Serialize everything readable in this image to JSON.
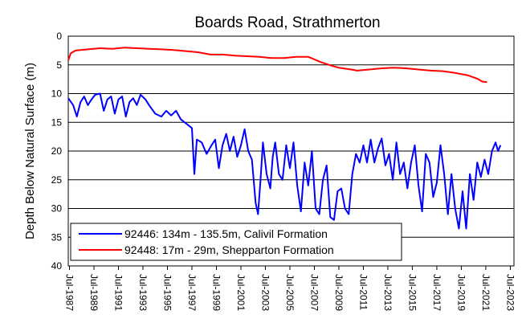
{
  "chart_data": {
    "type": "line",
    "title": "Boards Road, Strathmerton",
    "y_label": "Depth Below Natural Surface (m)",
    "xlim": [
      1987.4,
      2023.8
    ],
    "ylim": [
      40,
      0
    ],
    "yticks": [
      0,
      5,
      10,
      15,
      20,
      25,
      30,
      35,
      40
    ],
    "xticks": [
      {
        "value": 1987.5,
        "label": "Jul-1987"
      },
      {
        "value": 1989.5,
        "label": "Jul-1989"
      },
      {
        "value": 1991.5,
        "label": "Jul-1991"
      },
      {
        "value": 1993.5,
        "label": "Jul-1993"
      },
      {
        "value": 1995.5,
        "label": "Jul-1995"
      },
      {
        "value": 1997.5,
        "label": "Jul-1997"
      },
      {
        "value": 1999.5,
        "label": "Jul-1999"
      },
      {
        "value": 2001.5,
        "label": "Jul-2001"
      },
      {
        "value": 2003.5,
        "label": "Jul-2003"
      },
      {
        "value": 2005.5,
        "label": "Jul-2005"
      },
      {
        "value": 2007.5,
        "label": "Jul-2007"
      },
      {
        "value": 2009.5,
        "label": "Jul-2009"
      },
      {
        "value": 2011.5,
        "label": "Jul-2011"
      },
      {
        "value": 2013.5,
        "label": "Jul-2013"
      },
      {
        "value": 2015.5,
        "label": "Jul-2015"
      },
      {
        "value": 2017.5,
        "label": "Jul-2017"
      },
      {
        "value": 2019.5,
        "label": "Jul-2019"
      },
      {
        "value": 2021.5,
        "label": "Jul-2021"
      },
      {
        "value": 2023.5,
        "label": "Jul-2023"
      }
    ],
    "grid": true,
    "legend_position": "lower-left",
    "series": [
      {
        "name": "92446: 134m - 135.5m, Calivil Formation",
        "color": "#0000ff",
        "x": [
          1987.4,
          1987.8,
          1988.1,
          1988.4,
          1988.7,
          1989.0,
          1989.3,
          1989.6,
          1990.0,
          1990.3,
          1990.6,
          1990.9,
          1991.2,
          1991.5,
          1991.8,
          1992.1,
          1992.4,
          1992.7,
          1993.0,
          1993.3,
          1993.7,
          1994.0,
          1994.5,
          1995.0,
          1995.4,
          1995.8,
          1996.2,
          1996.6,
          1997.2,
          1997.5,
          1997.7,
          1997.9,
          1998.3,
          1998.7,
          1999.1,
          1999.4,
          1999.7,
          2000.0,
          2000.3,
          2000.6,
          2000.9,
          2001.2,
          2001.5,
          2001.8,
          2002.1,
          2002.4,
          2002.7,
          2002.9,
          2003.1,
          2003.3,
          2003.6,
          2003.9,
          2004.1,
          2004.3,
          2004.6,
          2004.9,
          2005.2,
          2005.5,
          2005.8,
          2006.1,
          2006.4,
          2006.7,
          2007.0,
          2007.3,
          2007.6,
          2007.9,
          2008.2,
          2008.5,
          2008.8,
          2009.1,
          2009.4,
          2009.7,
          2010.0,
          2010.3,
          2010.6,
          2010.9,
          2011.2,
          2011.5,
          2011.8,
          2012.1,
          2012.4,
          2012.7,
          2013.0,
          2013.3,
          2013.6,
          2013.9,
          2014.2,
          2014.5,
          2014.8,
          2015.1,
          2015.4,
          2015.7,
          2016.0,
          2016.3,
          2016.6,
          2016.9,
          2017.2,
          2017.5,
          2017.8,
          2018.1,
          2018.4,
          2018.7,
          2019.0,
          2019.3,
          2019.6,
          2019.9,
          2020.2,
          2020.5,
          2020.8,
          2021.1,
          2021.4,
          2021.7,
          2022.0,
          2022.3,
          2022.5,
          2022.7
        ],
        "values": [
          10.8,
          12,
          14,
          11.5,
          10.5,
          12,
          11,
          10.2,
          10,
          13,
          11,
          10.5,
          13.5,
          11,
          10.5,
          14,
          11.5,
          10.8,
          12,
          10.2,
          11,
          12,
          13.5,
          14,
          13,
          13.8,
          13,
          14.5,
          15.5,
          16,
          24,
          18,
          18.5,
          20.5,
          19,
          18,
          23,
          19,
          17,
          20,
          17.5,
          21,
          19,
          16.2,
          20,
          21.5,
          29,
          31,
          25,
          18.5,
          24,
          26.5,
          21,
          18.5,
          24,
          25,
          19,
          23,
          18.5,
          26,
          30.5,
          22,
          26,
          20,
          30,
          31,
          25,
          22.5,
          31.5,
          32,
          27,
          26.5,
          30,
          31,
          24,
          20.5,
          22,
          19,
          22,
          18,
          22,
          19.5,
          17.8,
          22.5,
          20.5,
          25,
          18.5,
          24,
          22,
          26.5,
          22,
          19,
          26,
          30.5,
          20.5,
          22,
          28,
          25.5,
          19,
          24,
          31,
          24,
          30,
          33.5,
          27,
          33.5,
          24,
          28.5,
          22,
          24.5,
          21.5,
          24,
          20,
          18.5,
          20,
          19
        ]
      },
      {
        "name": "92448: 17m - 29m, Shepparton Formation",
        "color": "#ff0000",
        "x": [
          1987.4,
          1987.6,
          1988.0,
          1989.0,
          1990.0,
          1991.0,
          1992.0,
          1993.0,
          1994.0,
          1995.0,
          1996.0,
          1997.0,
          1998.0,
          1999.0,
          2000.0,
          2001.0,
          2002.0,
          2003.0,
          2004.0,
          2005.0,
          2006.0,
          2007.0,
          2008.0,
          2009.0,
          2009.5,
          2010.5,
          2011.0,
          2012.0,
          2013.0,
          2014.0,
          2015.0,
          2016.0,
          2017.0,
          2018.0,
          2019.0,
          2020.0,
          2020.8,
          2021.2,
          2021.6
        ],
        "values": [
          4.2,
          3,
          2.5,
          2.3,
          2.1,
          2.2,
          2,
          2.1,
          2.2,
          2.3,
          2.4,
          2.6,
          2.8,
          3.2,
          3.2,
          3.4,
          3.5,
          3.6,
          3.8,
          3.8,
          3.6,
          3.6,
          4.5,
          5.2,
          5.5,
          5.8,
          6,
          5.8,
          5.6,
          5.5,
          5.6,
          5.8,
          6,
          6.1,
          6.4,
          6.8,
          7.4,
          7.9,
          8
        ]
      }
    ]
  }
}
